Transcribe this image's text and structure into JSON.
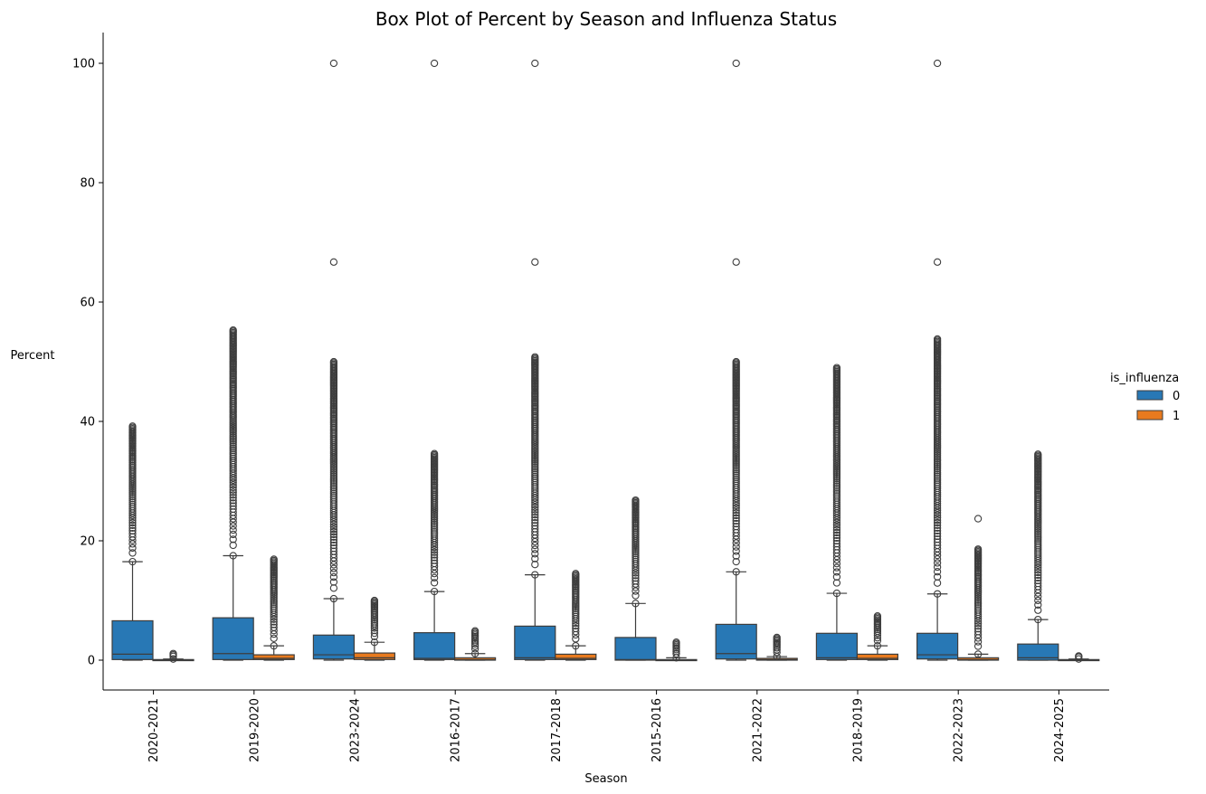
{
  "chart_data": {
    "type": "box",
    "title": "Box Plot of Percent by Season and Influenza Status",
    "xlabel": "Season",
    "ylabel": "Percent",
    "ylim": [
      -5,
      105
    ],
    "yticks": [
      0,
      20,
      40,
      60,
      80,
      100
    ],
    "categories": [
      "2020-2021",
      "2019-2020",
      "2023-2024",
      "2016-2017",
      "2017-2018",
      "2015-2016",
      "2021-2022",
      "2018-2019",
      "2022-2023",
      "2024-2025"
    ],
    "legend": {
      "title": "is_influenza",
      "position": "right",
      "entries": [
        "0",
        "1"
      ]
    },
    "grid": false,
    "series": [
      {
        "name": "0",
        "color": "#2878b5",
        "boxes": [
          {
            "whislo": 0,
            "q1": 0.1,
            "med": 1.0,
            "q3": 6.6,
            "whishi": 16.5,
            "outlier_min": 16.5,
            "outlier_max": 39.2,
            "extreme_outliers": []
          },
          {
            "whislo": 0,
            "q1": 0.1,
            "med": 1.1,
            "q3": 7.1,
            "whishi": 17.5,
            "outlier_min": 17.5,
            "outlier_max": 55.3,
            "extreme_outliers": []
          },
          {
            "whislo": 0,
            "q1": 0.2,
            "med": 0.9,
            "q3": 4.2,
            "whishi": 10.3,
            "outlier_min": 10.3,
            "outlier_max": 50.0,
            "extreme_outliers": [
              66.7,
              100
            ]
          },
          {
            "whislo": 0,
            "q1": 0.1,
            "med": 0.3,
            "q3": 4.6,
            "whishi": 11.5,
            "outlier_min": 11.5,
            "outlier_max": 34.6,
            "extreme_outliers": [
              100
            ]
          },
          {
            "whislo": 0,
            "q1": 0.1,
            "med": 0.4,
            "q3": 5.7,
            "whishi": 14.3,
            "outlier_min": 14.3,
            "outlier_max": 50.8,
            "extreme_outliers": [
              66.7,
              100
            ]
          },
          {
            "whislo": 0,
            "q1": 0.0,
            "med": 0.1,
            "q3": 3.8,
            "whishi": 9.5,
            "outlier_min": 9.5,
            "outlier_max": 26.8,
            "extreme_outliers": []
          },
          {
            "whislo": 0,
            "q1": 0.2,
            "med": 1.1,
            "q3": 6.0,
            "whishi": 14.8,
            "outlier_min": 14.8,
            "outlier_max": 50.0,
            "extreme_outliers": [
              66.7,
              100
            ]
          },
          {
            "whislo": 0,
            "q1": 0.1,
            "med": 0.4,
            "q3": 4.5,
            "whishi": 11.2,
            "outlier_min": 11.2,
            "outlier_max": 49.0,
            "extreme_outliers": []
          },
          {
            "whislo": 0,
            "q1": 0.2,
            "med": 0.9,
            "q3": 4.5,
            "whishi": 11.1,
            "outlier_min": 11.1,
            "outlier_max": 53.8,
            "extreme_outliers": [
              66.7,
              100
            ]
          },
          {
            "whislo": 0,
            "q1": 0.0,
            "med": 0.4,
            "q3": 2.7,
            "whishi": 6.8,
            "outlier_min": 6.8,
            "outlier_max": 34.5,
            "extreme_outliers": []
          }
        ]
      },
      {
        "name": "1",
        "color": "#e87a1e",
        "boxes": [
          {
            "whislo": 0,
            "q1": 0.0,
            "med": 0.0,
            "q3": 0.1,
            "whishi": 0.2,
            "outlier_min": 0.2,
            "outlier_max": 1.1,
            "extreme_outliers": []
          },
          {
            "whislo": 0,
            "q1": 0.1,
            "med": 0.3,
            "q3": 0.9,
            "whishi": 2.4,
            "outlier_min": 2.4,
            "outlier_max": 16.9,
            "extreme_outliers": []
          },
          {
            "whislo": 0,
            "q1": 0.1,
            "med": 0.4,
            "q3": 1.2,
            "whishi": 3.0,
            "outlier_min": 3.0,
            "outlier_max": 10.0,
            "extreme_outliers": []
          },
          {
            "whislo": 0,
            "q1": 0.0,
            "med": 0.1,
            "q3": 0.4,
            "whishi": 1.1,
            "outlier_min": 1.1,
            "outlier_max": 4.9,
            "extreme_outliers": []
          },
          {
            "whislo": 0,
            "q1": 0.1,
            "med": 0.3,
            "q3": 1.0,
            "whishi": 2.4,
            "outlier_min": 2.4,
            "outlier_max": 14.5,
            "extreme_outliers": []
          },
          {
            "whislo": 0,
            "q1": 0.0,
            "med": 0.0,
            "q3": 0.1,
            "whishi": 0.4,
            "outlier_min": 0.4,
            "outlier_max": 3.0,
            "extreme_outliers": []
          },
          {
            "whislo": 0,
            "q1": 0.0,
            "med": 0.1,
            "q3": 0.3,
            "whishi": 0.6,
            "outlier_min": 0.6,
            "outlier_max": 3.8,
            "extreme_outliers": []
          },
          {
            "whislo": 0,
            "q1": 0.1,
            "med": 0.3,
            "q3": 1.0,
            "whishi": 2.4,
            "outlier_min": 2.4,
            "outlier_max": 7.4,
            "extreme_outliers": []
          },
          {
            "whislo": 0,
            "q1": 0.0,
            "med": 0.1,
            "q3": 0.4,
            "whishi": 1.0,
            "outlier_min": 1.0,
            "outlier_max": 18.6,
            "extreme_outliers": [
              23.7
            ]
          },
          {
            "whislo": 0,
            "q1": 0.0,
            "med": 0.0,
            "q3": 0.1,
            "whishi": 0.2,
            "outlier_min": 0.2,
            "outlier_max": 0.7,
            "extreme_outliers": []
          }
        ]
      }
    ]
  }
}
